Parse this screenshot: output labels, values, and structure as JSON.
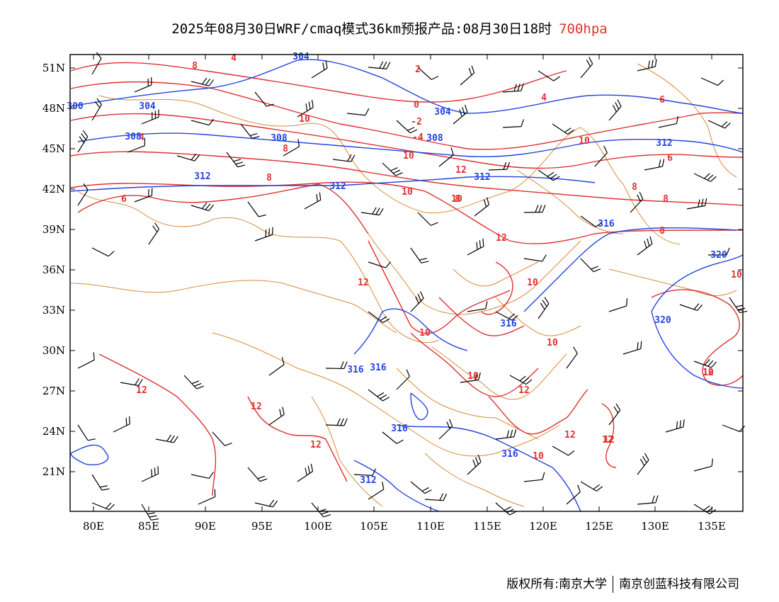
{
  "header": {
    "title": "2025年08月30日WRF/cmaq模式36km预报产品:08月30日18时",
    "level": "700hpa"
  },
  "map": {
    "region": "China and surrounding areas",
    "lat_labels": [
      "51N",
      "48N",
      "45N",
      "42N",
      "39N",
      "36N",
      "33N",
      "30N",
      "27N",
      "24N",
      "21N"
    ],
    "lon_labels": [
      "80E",
      "85E",
      "90E",
      "95E",
      "100E",
      "105E",
      "110E",
      "115E",
      "120E",
      "125E",
      "130E",
      "135E"
    ],
    "colors": {
      "frame": "#000000",
      "temperature_contour": "#e03030",
      "geopotential_contour": "#2244dd",
      "boundaries": "#d98a3a",
      "wind_barbs": "#000000"
    },
    "layers": [
      "temperature contours",
      "geopotential height contours",
      "wind barbs",
      "province and country boundaries"
    ],
    "temperature_labels": [
      "4",
      "8",
      "2",
      "0",
      "-2",
      "-4",
      "4",
      "6",
      "10",
      "8",
      "10",
      "12",
      "10",
      "8",
      "6",
      "8",
      "8",
      "6",
      "4",
      "8",
      "10",
      "12",
      "12",
      "10",
      "10",
      "10",
      "12",
      "10",
      "10",
      "10",
      "12",
      "12",
      "12",
      "12",
      "12",
      "12",
      "10",
      "8",
      "12",
      "10"
    ],
    "height_labels": [
      "304",
      "304",
      "300",
      "304",
      "308",
      "308",
      "308",
      "312",
      "312",
      "312",
      "312",
      "316",
      "320",
      "320",
      "316",
      "316",
      "316",
      "316",
      "316",
      "312"
    ]
  },
  "footer": {
    "copyright_left": "版权所有:南京大学",
    "copyright_right": "南京创蓝科技有限公司"
  }
}
